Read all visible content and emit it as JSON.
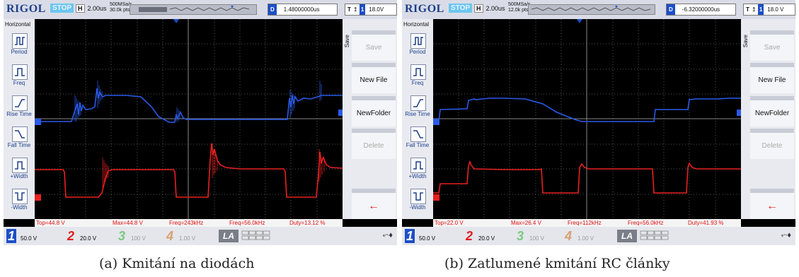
{
  "panels": [
    {
      "brand": "RIGOL",
      "status": "STOP",
      "timebase_label": "H",
      "timebase": "2.00us",
      "sample_rate": "500MSa/s",
      "memory_depth": "30.0k pts",
      "delay_label": "D",
      "delay": "1.48000000us",
      "trigger_label": "T",
      "trigger_source": "1",
      "trigger_level": "18.0V",
      "left_menu_title": "Horizontal",
      "left_menu": [
        "Period",
        "Freq",
        "Rise Time",
        "Fall Time",
        "+Width",
        "-Width"
      ],
      "right_menu_title": "Save",
      "right_menu": [
        "Save",
        "New File",
        "NewFolder",
        "Delete",
        "←"
      ],
      "measurements": [
        "Top=44.8 V",
        "Max=44.8 V",
        "Freq=243kHz",
        "Freq=56.0kHz",
        "Duty=13.12 %"
      ],
      "channels": [
        {
          "num": "1",
          "scale": "50.0 V",
          "color": "#1d4ec8"
        },
        {
          "num": "2",
          "scale": "20.0 V",
          "color": "#e02020"
        },
        {
          "num": "3",
          "scale": "100 V",
          "color": "#7ec87e"
        },
        {
          "num": "4",
          "scale": "1.00 V",
          "color": "#d8a070"
        }
      ],
      "la_label": "LA",
      "speaker": "⬿♦",
      "caption": "(a) Kmitání na diodách"
    },
    {
      "brand": "RIGOL",
      "status": "STOP",
      "timebase_label": "H",
      "timebase": "2.00us",
      "sample_rate": "500MSa/s",
      "memory_depth": "12.0k pts",
      "delay_label": "D",
      "delay": "-6.32000000us",
      "trigger_label": "T",
      "trigger_source": "1",
      "trigger_level": "18.0 V",
      "left_menu_title": "Horizontal",
      "left_menu": [
        "Period",
        "Freq",
        "Rise Time",
        "Fall Time",
        "+Width",
        "-Width"
      ],
      "right_menu_title": "Save",
      "right_menu": [
        "Save",
        "New File",
        "NewFolder",
        "Delete",
        "←"
      ],
      "measurements": [
        "Top=22.0 V",
        "Max=26.4 V",
        "Freq=112kHz",
        "Freq=56.0kHz",
        "Duty=41.93 %"
      ],
      "channels": [
        {
          "num": "1",
          "scale": "50.0 V",
          "color": "#1d4ec8"
        },
        {
          "num": "2",
          "scale": "20.0 V",
          "color": "#e02020"
        },
        {
          "num": "3",
          "scale": "100 V",
          "color": "#7ec87e"
        },
        {
          "num": "4",
          "scale": "1.00 V",
          "color": "#d8a070"
        }
      ],
      "la_label": "LA",
      "speaker": "⬿♦",
      "caption": "(b) Zatlumené kmitání RC články"
    }
  ]
}
